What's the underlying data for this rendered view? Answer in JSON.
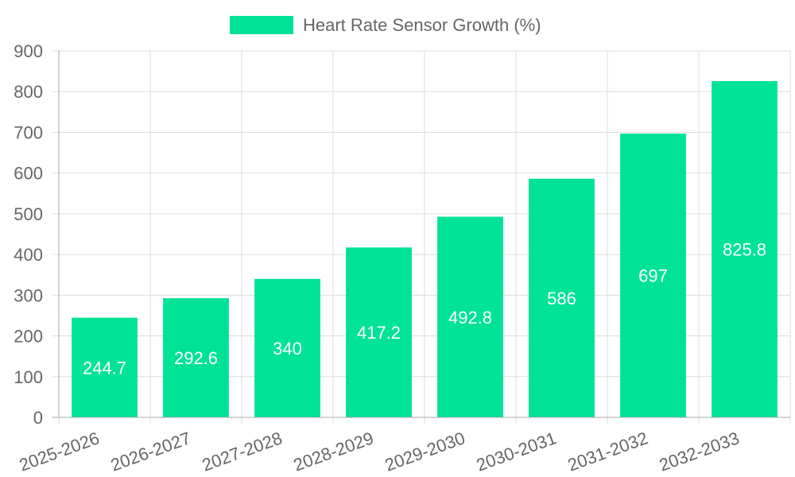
{
  "chart_data": {
    "type": "bar",
    "categories": [
      "2025-2026",
      "2026-2027",
      "2027-2028",
      "2028-2029",
      "2029-2030",
      "2030-2031",
      "2031-2032",
      "2032-2033"
    ],
    "series": [
      {
        "name": "Heart Rate Sensor Growth (%)",
        "values": [
          244.7,
          292.6,
          340,
          417.2,
          492.8,
          586,
          697,
          825.8
        ],
        "color": "#00e396"
      }
    ],
    "data_labels": [
      "244.7",
      "292.6",
      "340",
      "417.2",
      "492.8",
      "586",
      "697",
      "825.8"
    ],
    "y_ticks": [
      "0",
      "100",
      "200",
      "300",
      "400",
      "500",
      "600",
      "700",
      "800",
      "900"
    ],
    "ylim": [
      0,
      900
    ],
    "grid": true,
    "legend_position": "top-center"
  }
}
